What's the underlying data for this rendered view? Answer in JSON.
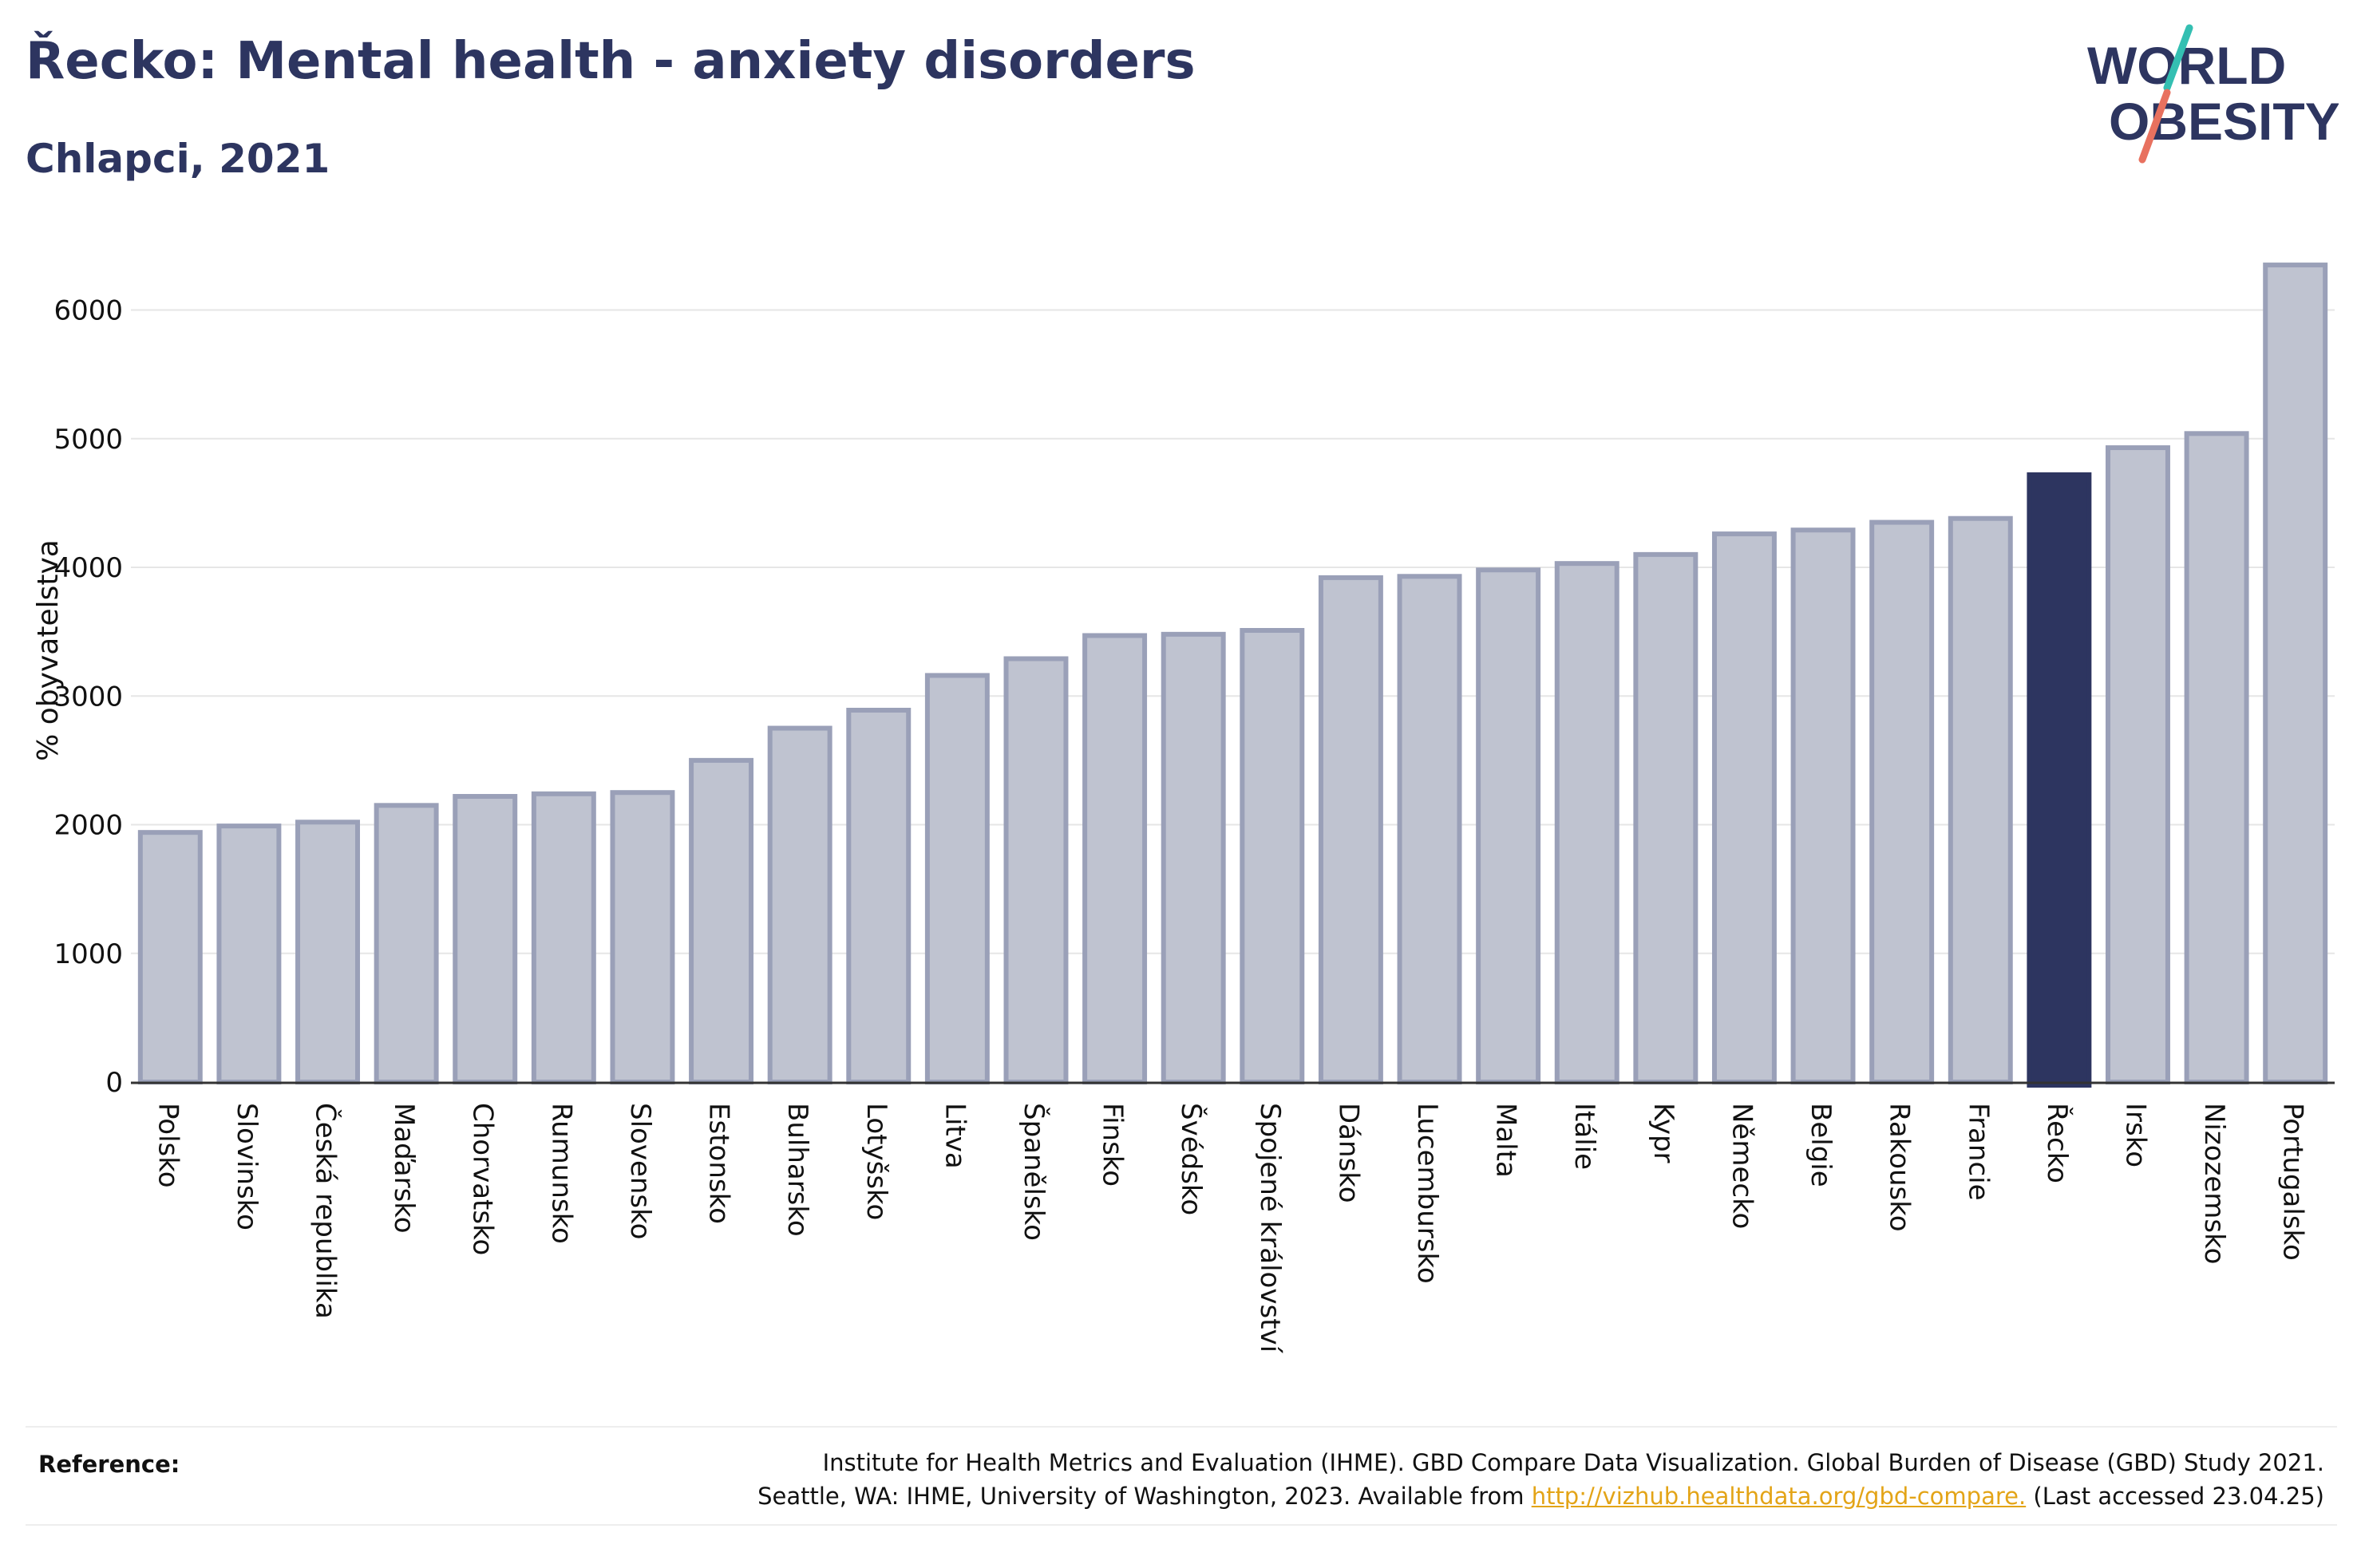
{
  "header": {
    "title": "Řecko: Mental health - anxiety disorders",
    "subtitle": "Chlapci, 2021"
  },
  "logo": {
    "line1": "WORLD",
    "line2": "OBESITY"
  },
  "colors": {
    "highlight": "#2d3560",
    "bar_fill": "#bfc3d0",
    "bar_stroke": "#9aa0b8",
    "text": "#2d3560",
    "link": "#e3a417",
    "logo_teal": "#34bfb2",
    "logo_coral": "#e8715f"
  },
  "chart_data": {
    "type": "bar",
    "title": "Řecko: Mental health - anxiety disorders",
    "subtitle": "Chlapci, 2021",
    "xlabel": "",
    "ylabel": "% obyvatelstva",
    "ylim": [
      0,
      6400
    ],
    "yticks": [
      0,
      1000,
      2000,
      3000,
      4000,
      5000,
      6000
    ],
    "grid": true,
    "highlight": "Řecko",
    "categories": [
      "Polsko",
      "Slovinsko",
      "Česká republika",
      "Maďarsko",
      "Chorvatsko",
      "Rumunsko",
      "Slovensko",
      "Estonsko",
      "Bulharsko",
      "Lotyšsko",
      "Litva",
      "Španělsko",
      "Finsko",
      "Švédsko",
      "Spojené království",
      "Dánsko",
      "Lucembursko",
      "Malta",
      "Itálie",
      "Kypr",
      "Německo",
      "Belgie",
      "Rakousko",
      "Francie",
      "Řecko",
      "Irsko",
      "Nizozemsko",
      "Portugalsko"
    ],
    "values": [
      1940,
      1990,
      2020,
      2150,
      2220,
      2240,
      2250,
      2500,
      2750,
      2890,
      3160,
      3290,
      3470,
      3480,
      3510,
      3920,
      3930,
      3980,
      4030,
      4100,
      4260,
      4290,
      4350,
      4380,
      4720,
      4930,
      5040,
      6350
    ]
  },
  "reference": {
    "label": "Reference:",
    "line1": "Institute for Health Metrics and Evaluation (IHME). GBD Compare Data Visualization. Global Burden of Disease (GBD) Study 2021.",
    "line2_prefix": "Seattle, WA: IHME, University of Washington, 2023. Available from ",
    "link": "http://vizhub.healthdata.org/gbd-compare.",
    "line2_suffix": " (Last accessed 23.04.25)"
  }
}
